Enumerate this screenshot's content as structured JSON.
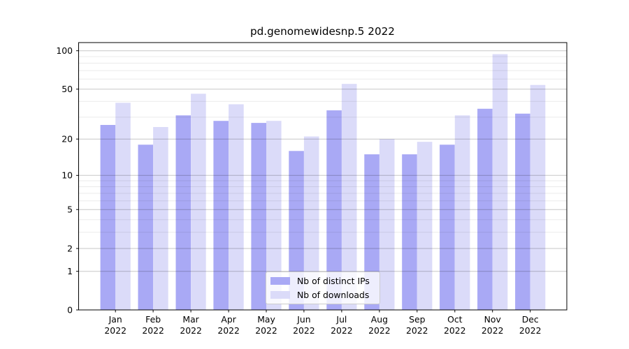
{
  "figure_title": "pd.genomewidesnp.5 2022",
  "chart_data": {
    "type": "bar",
    "title": "pd.genomewidesnp.5 2022",
    "categories": [
      "Jan",
      "Feb",
      "Mar",
      "Apr",
      "May",
      "Jun",
      "Jul",
      "Aug",
      "Sep",
      "Oct",
      "Nov",
      "Dec"
    ],
    "category_year": "2022",
    "series": [
      {
        "name": "Nb of distinct IPs",
        "color": "#a9a9f5",
        "values": [
          26,
          18,
          31,
          28,
          27,
          16,
          34,
          15,
          15,
          18,
          35,
          32
        ]
      },
      {
        "name": "Nb of downloads",
        "color": "#dbdbf9",
        "values": [
          39,
          25,
          46,
          38,
          28,
          21,
          55,
          20,
          19,
          31,
          94,
          54
        ]
      }
    ],
    "xlabel": "",
    "ylabel": "",
    "yscale": "log1p",
    "y_major_ticks": [
      0,
      1,
      2,
      5,
      10,
      20,
      50,
      100
    ],
    "y_minor_ticks": [
      3,
      4,
      6,
      7,
      8,
      9,
      30,
      40,
      60,
      70,
      80,
      90
    ],
    "ylim": [
      0,
      115
    ],
    "grid": "both",
    "legend_position": "lower center",
    "colors": {
      "bar_dark": "#a9a9f5",
      "bar_light": "#dbdbf9",
      "grid_major": "rgba(0,0,0,0.22)",
      "grid_minor": "rgba(0,0,0,0.08)",
      "axis": "#000000",
      "background": "#ffffff"
    }
  }
}
